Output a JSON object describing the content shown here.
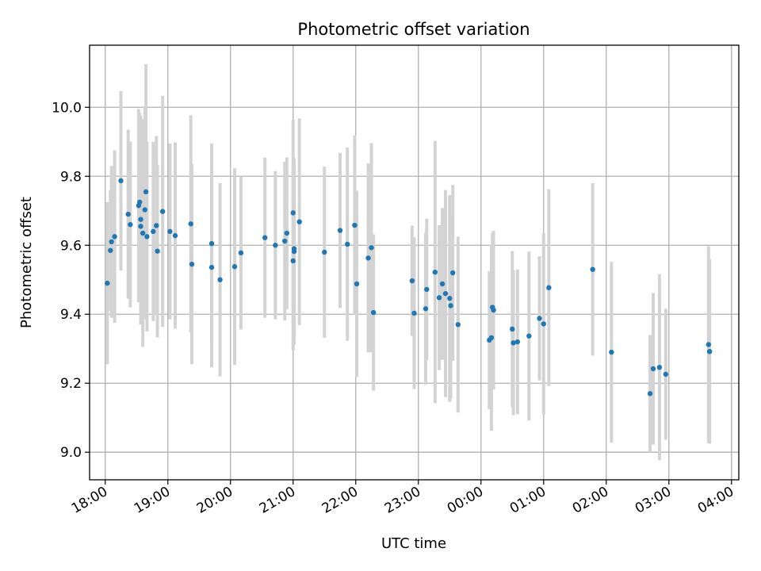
{
  "chart_data": {
    "type": "scatter",
    "title": "Photometric offset variation",
    "xlabel": "UTC time",
    "ylabel": "Photometric offset",
    "x_ticks": [
      "18:00",
      "19:00",
      "20:00",
      "21:00",
      "22:00",
      "23:00",
      "00:00",
      "01:00",
      "02:00",
      "03:00",
      "04:00"
    ],
    "y_ticks": [
      "9.0",
      "9.2",
      "9.4",
      "9.6",
      "9.8",
      "10.0"
    ],
    "xlim": [
      "17:45",
      "04:07"
    ],
    "ylim": [
      8.92,
      10.18
    ],
    "grid": true,
    "colors": {
      "points": "#1f77b4",
      "errorbars": "#d3d3d3",
      "grid": "#b0b0b0"
    },
    "series": [
      {
        "x": [
          "18:02",
          "18:05",
          "18:06",
          "18:09",
          "18:15",
          "18:22",
          "18:24",
          "18:32",
          "18:33",
          "18:34",
          "18:34",
          "18:36",
          "18:38",
          "18:39",
          "18:40",
          "18:46",
          "18:49",
          "18:50",
          "18:55",
          "19:02",
          "19:07",
          "19:22",
          "19:23",
          "19:42",
          "19:42",
          "19:50",
          "20:04",
          "20:10",
          "20:33",
          "20:43",
          "20:52",
          "20:54",
          "21:00",
          "21:01",
          "21:01",
          "21:00",
          "21:06",
          "21:30",
          "21:45",
          "21:52",
          "21:59",
          "22:01",
          "22:12",
          "22:15",
          "22:17",
          "22:54",
          "22:56",
          "23:07",
          "23:08",
          "23:16",
          "23:20",
          "23:23",
          "23:26",
          "23:30",
          "23:31",
          "23:33",
          "23:38",
          "00:08",
          "00:10",
          "00:11",
          "00:12",
          "00:30",
          "00:31",
          "00:35",
          "00:46",
          "00:56",
          "01:00",
          "01:05",
          "01:47",
          "02:05",
          "02:42",
          "02:45",
          "02:51",
          "02:57",
          "03:38",
          "03:39",
          "03:39"
        ],
        "y": [
          9.49,
          9.585,
          9.61,
          9.625,
          9.787,
          9.69,
          9.66,
          9.715,
          9.725,
          9.675,
          9.655,
          9.635,
          9.703,
          9.755,
          9.625,
          9.64,
          9.657,
          9.583,
          9.698,
          9.64,
          9.628,
          9.662,
          9.545,
          9.536,
          9.605,
          9.5,
          9.538,
          9.578,
          9.622,
          9.6,
          9.612,
          9.635,
          9.555,
          9.582,
          9.59,
          9.694,
          9.668,
          9.58,
          9.643,
          9.603,
          9.658,
          9.488,
          9.563,
          9.593,
          9.405,
          9.497,
          9.403,
          9.416,
          9.472,
          9.522,
          9.448,
          9.488,
          9.46,
          9.446,
          9.425,
          9.52,
          9.37,
          9.325,
          9.332,
          9.42,
          9.412,
          9.357,
          9.317,
          9.32,
          9.337,
          9.388,
          9.372,
          9.477,
          9.53,
          9.29,
          9.17,
          9.242,
          9.246,
          9.226,
          9.312,
          9.292,
          9.292
        ],
        "yerr": [
          0.235,
          0.175,
          0.22,
          0.25,
          0.26,
          0.245,
          0.24,
          0.28,
          0.26,
          0.3,
          0.285,
          0.33,
          0.3,
          0.37,
          0.275,
          0.26,
          0.26,
          0.25,
          0.335,
          0.255,
          0.27,
          0.315,
          0.29,
          0.29,
          0.29,
          0.28,
          0.285,
          0.222,
          0.232,
          0.215,
          0.23,
          0.22,
          0.26,
          0.27,
          0.238,
          0.27,
          0.3,
          0.248,
          0.225,
          0.28,
          0.26,
          0.27,
          0.274,
          0.303,
          0.227,
          0.16,
          0.22,
          0.22,
          0.205,
          0.38,
          0.21,
          0.22,
          0.3,
          0.3,
          0.27,
          0.255,
          0.255,
          0.2,
          0.27,
          0.215,
          0.23,
          0.226,
          0.21,
          0.21,
          0.245,
          0.18,
          0.263,
          0.285,
          0.25,
          0.262,
          0.17,
          0.22,
          0.27,
          0.19,
          0.285,
          0.267,
          0.267
        ]
      }
    ]
  }
}
